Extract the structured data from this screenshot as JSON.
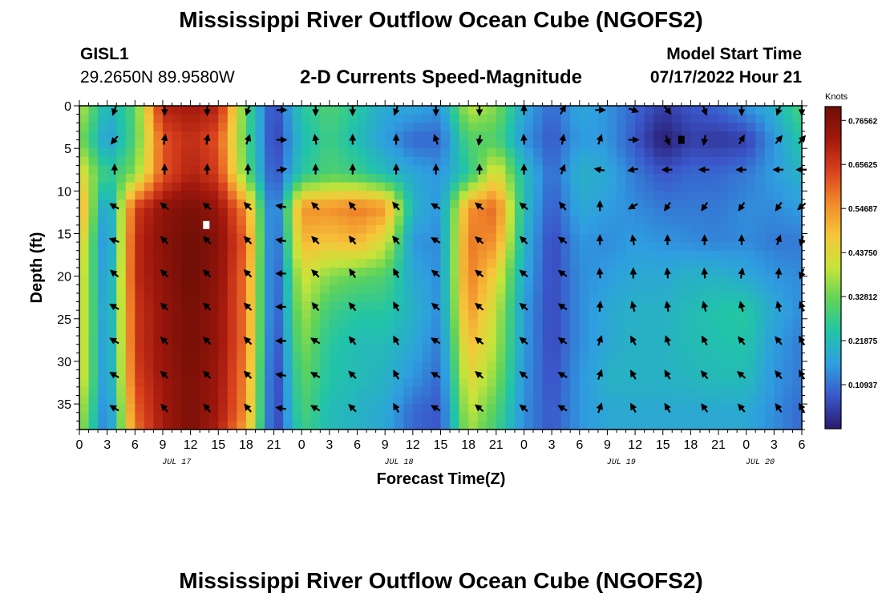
{
  "header": {
    "title": "Mississippi River Outflow Ocean Cube (NGOFS2)",
    "station_id": "GISL1",
    "station_coords": "29.2650N  89.9580W",
    "subtitle": "2-D Currents Speed-Magnitude",
    "model_start_label": "Model Start Time",
    "model_start_value": "07/17/2022 Hour 21"
  },
  "footer": {
    "title_repeat": "Mississippi River Outflow Ocean Cube (NGOFS2)"
  },
  "colors": {
    "ramp": [
      "#2b1a6e",
      "#3a56c9",
      "#2f9ee0",
      "#21c4a8",
      "#5fd35a",
      "#c6e43a",
      "#f6c63a",
      "#f08a2b",
      "#d9411e",
      "#a2180d",
      "#6e0e06"
    ],
    "arrow": "#000000",
    "frame": "#000000"
  },
  "chart_data": {
    "type": "heatmap",
    "title": "2-D Currents Speed-Magnitude",
    "xlabel": "Forecast Time(Z)",
    "ylabel": "Depth (ft)",
    "x_range_hours": [
      0,
      78
    ],
    "x_tick_labels": [
      "0",
      "3",
      "6",
      "9",
      "12",
      "15",
      "18",
      "21",
      "0",
      "3",
      "6",
      "9",
      "12",
      "15",
      "18",
      "21",
      "0",
      "3",
      "6",
      "9",
      "12",
      "15",
      "18",
      "21",
      "0",
      "3",
      "6"
    ],
    "date_labels": [
      {
        "label": "JUL 17",
        "hour": 10.5
      },
      {
        "label": "JUL 18",
        "hour": 34.5
      },
      {
        "label": "JUL 19",
        "hour": 58.5
      },
      {
        "label": "JUL 20",
        "hour": 73.5
      }
    ],
    "y_range_ft": [
      0,
      38
    ],
    "y_ticks": [
      0,
      5,
      10,
      15,
      20,
      25,
      30,
      35
    ],
    "colorbar": {
      "title": "Knots",
      "tick_labels": [
        "0.76562",
        "0.65625",
        "0.54687",
        "0.43750",
        "0.32812",
        "0.21875",
        "0.10937"
      ],
      "tick_values": [
        0.76562,
        0.65625,
        0.54687,
        0.4375,
        0.32812,
        0.21875,
        0.10937
      ],
      "range": [
        0.0,
        0.8
      ]
    },
    "speed_grid": {
      "x_hours": [
        0,
        3,
        6,
        9,
        12,
        15,
        18,
        21,
        24,
        27,
        30,
        33,
        36,
        39,
        42,
        45,
        48,
        51,
        54,
        57,
        60,
        63,
        66,
        69,
        72,
        75,
        78
      ],
      "depths_ft": [
        0,
        4,
        8,
        12,
        16,
        20,
        24,
        28,
        32,
        36,
        38
      ],
      "values": [
        [
          0.4,
          0.2,
          0.3,
          0.7,
          0.72,
          0.7,
          0.3,
          0.05,
          0.25,
          0.3,
          0.25,
          0.18,
          0.18,
          0.15,
          0.4,
          0.35,
          0.18,
          0.1,
          0.18,
          0.15,
          0.1,
          0.05,
          0.08,
          0.1,
          0.15,
          0.2,
          0.3
        ],
        [
          0.35,
          0.15,
          0.3,
          0.62,
          0.68,
          0.62,
          0.3,
          0.04,
          0.22,
          0.28,
          0.22,
          0.16,
          0.1,
          0.1,
          0.3,
          0.3,
          0.15,
          0.08,
          0.16,
          0.15,
          0.08,
          0.0,
          0.05,
          0.04,
          0.05,
          0.15,
          0.25
        ],
        [
          0.45,
          0.25,
          0.35,
          0.62,
          0.7,
          0.65,
          0.32,
          0.06,
          0.25,
          0.3,
          0.28,
          0.22,
          0.18,
          0.15,
          0.25,
          0.45,
          0.22,
          0.1,
          0.2,
          0.18,
          0.12,
          0.08,
          0.1,
          0.1,
          0.12,
          0.16,
          0.2
        ],
        [
          0.55,
          0.12,
          0.65,
          0.75,
          0.78,
          0.74,
          0.55,
          0.06,
          0.55,
          0.55,
          0.58,
          0.55,
          0.2,
          0.15,
          0.55,
          0.6,
          0.22,
          0.08,
          0.18,
          0.16,
          0.14,
          0.12,
          0.12,
          0.12,
          0.14,
          0.14,
          0.16
        ],
        [
          0.48,
          0.1,
          0.68,
          0.76,
          0.8,
          0.76,
          0.6,
          0.05,
          0.5,
          0.48,
          0.5,
          0.42,
          0.15,
          0.14,
          0.58,
          0.55,
          0.2,
          0.06,
          0.15,
          0.14,
          0.16,
          0.15,
          0.14,
          0.13,
          0.14,
          0.12,
          0.12
        ],
        [
          0.45,
          0.12,
          0.68,
          0.75,
          0.8,
          0.75,
          0.58,
          0.05,
          0.42,
          0.35,
          0.32,
          0.3,
          0.18,
          0.14,
          0.58,
          0.45,
          0.18,
          0.06,
          0.14,
          0.16,
          0.18,
          0.18,
          0.2,
          0.2,
          0.18,
          0.15,
          0.14
        ],
        [
          0.45,
          0.13,
          0.66,
          0.74,
          0.79,
          0.74,
          0.58,
          0.05,
          0.38,
          0.28,
          0.25,
          0.25,
          0.2,
          0.14,
          0.55,
          0.4,
          0.16,
          0.06,
          0.14,
          0.18,
          0.2,
          0.2,
          0.22,
          0.24,
          0.25,
          0.18,
          0.14
        ],
        [
          0.45,
          0.12,
          0.66,
          0.74,
          0.79,
          0.74,
          0.58,
          0.04,
          0.35,
          0.25,
          0.22,
          0.22,
          0.18,
          0.12,
          0.5,
          0.38,
          0.16,
          0.06,
          0.14,
          0.18,
          0.2,
          0.2,
          0.22,
          0.23,
          0.24,
          0.16,
          0.12
        ],
        [
          0.45,
          0.12,
          0.64,
          0.73,
          0.78,
          0.73,
          0.56,
          0.03,
          0.32,
          0.24,
          0.22,
          0.2,
          0.15,
          0.1,
          0.45,
          0.35,
          0.15,
          0.07,
          0.15,
          0.2,
          0.2,
          0.2,
          0.21,
          0.22,
          0.22,
          0.15,
          0.12
        ],
        [
          0.4,
          0.1,
          0.6,
          0.72,
          0.78,
          0.72,
          0.55,
          0.03,
          0.3,
          0.22,
          0.2,
          0.18,
          0.1,
          0.08,
          0.4,
          0.3,
          0.14,
          0.08,
          0.15,
          0.18,
          0.18,
          0.18,
          0.18,
          0.18,
          0.18,
          0.14,
          0.1
        ],
        [
          0.38,
          0.1,
          0.58,
          0.72,
          0.78,
          0.7,
          0.52,
          0.03,
          0.28,
          0.22,
          0.2,
          0.18,
          0.1,
          0.08,
          0.38,
          0.28,
          0.14,
          0.08,
          0.15,
          0.18,
          0.18,
          0.18,
          0.18,
          0.18,
          0.18,
          0.14,
          0.1
        ]
      ]
    },
    "vectors": {
      "x_hours": [
        3.8,
        9.2,
        13.8,
        18.2,
        21.8,
        25.5,
        29.5,
        34.2,
        38.5,
        43.2,
        48.0,
        52.2,
        56.2,
        59.8,
        63.5,
        67.5,
        71.5,
        75.5,
        78.0
      ],
      "depths_ft": [
        0.5,
        4,
        7.5,
        11.8,
        15.8,
        19.7,
        23.6,
        27.6,
        31.6,
        35.5
      ],
      "direction_deg_rows": [
        [
          200,
          180,
          180,
          200,
          90,
          180,
          180,
          200,
          180,
          180,
          0,
          30,
          90,
          110,
          140,
          160,
          180,
          200,
          180
        ],
        [
          220,
          10,
          10,
          20,
          90,
          350,
          0,
          0,
          340,
          190,
          355,
          10,
          20,
          90,
          160,
          190,
          30,
          40,
          40
        ],
        [
          0,
          0,
          0,
          0,
          80,
          0,
          0,
          0,
          0,
          0,
          0,
          20,
          280,
          260,
          270,
          270,
          270,
          270,
          270
        ],
        [
          300,
          310,
          310,
          315,
          280,
          315,
          320,
          320,
          300,
          310,
          310,
          320,
          0,
          240,
          215,
          215,
          215,
          215,
          230
        ],
        [
          290,
          315,
          315,
          315,
          280,
          315,
          320,
          320,
          300,
          310,
          315,
          305,
          0,
          350,
          0,
          0,
          0,
          20,
          195
        ],
        [
          310,
          315,
          315,
          315,
          270,
          315,
          325,
          330,
          310,
          310,
          310,
          305,
          355,
          0,
          355,
          355,
          10,
          5,
          200
        ],
        [
          300,
          315,
          315,
          315,
          270,
          320,
          320,
          330,
          310,
          310,
          310,
          305,
          5,
          345,
          350,
          345,
          345,
          345,
          340
        ],
        [
          300,
          315,
          315,
          315,
          270,
          300,
          320,
          330,
          300,
          310,
          310,
          305,
          20,
          330,
          340,
          330,
          320,
          320,
          330
        ],
        [
          300,
          315,
          315,
          315,
          280,
          300,
          315,
          330,
          300,
          310,
          310,
          300,
          20,
          330,
          330,
          320,
          310,
          320,
          330
        ],
        [
          300,
          320,
          320,
          320,
          280,
          300,
          315,
          330,
          300,
          310,
          310,
          300,
          20,
          330,
          330,
          325,
          320,
          325,
          330
        ]
      ]
    },
    "markers": [
      {
        "hour": 13.7,
        "depth_ft": 14,
        "color": "#ffffff"
      },
      {
        "hour": 65.0,
        "depth_ft": 4,
        "color": "#000000"
      }
    ]
  }
}
